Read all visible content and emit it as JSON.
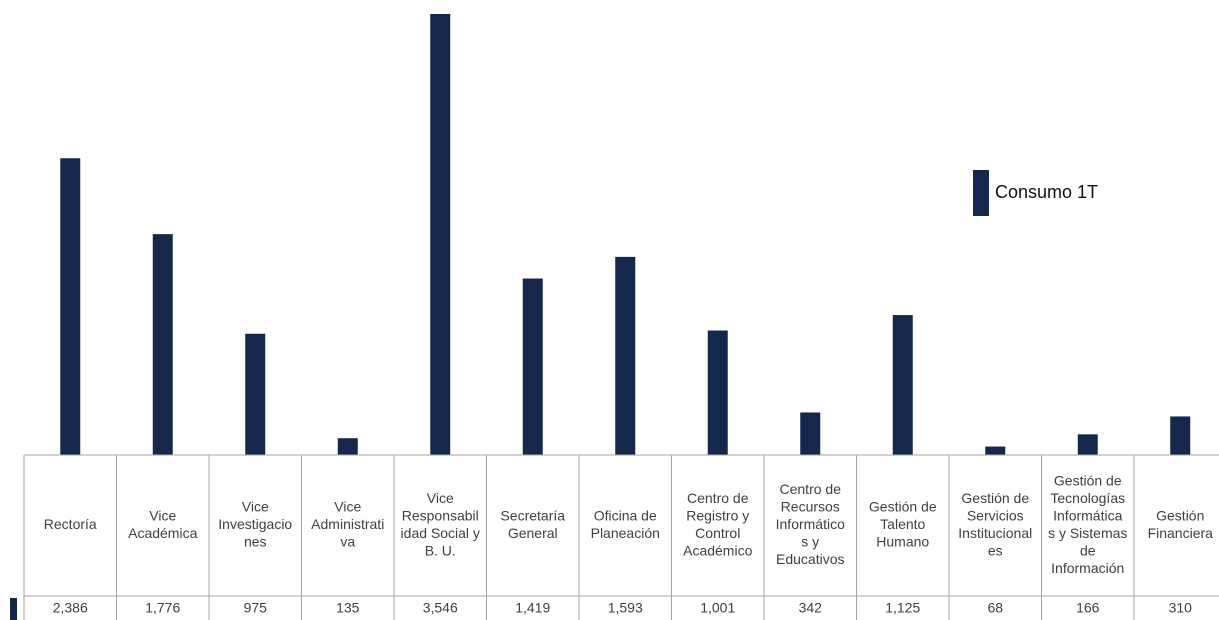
{
  "chart_data": {
    "type": "bar",
    "categories": [
      "Rectoría",
      "Vice Académica",
      "Vice Investigaciones",
      "Vice Administrativa",
      "Vice Responsabilidad Social y B. U.",
      "Secretaría General",
      "Oficina de Planeación",
      "Centro de Registro y Control Académico",
      "Centro de Recursos Informáticos y Educativos",
      "Gestión de Talento Humano",
      "Gestión de Servicios Institucionales",
      "Gestión de Tecnologías Informáticas y Sistemas de Información",
      "Gestión Financiera"
    ],
    "category_lines": [
      [
        "Rectoría"
      ],
      [
        "Vice",
        "Académica"
      ],
      [
        "Vice",
        "Investigacio",
        "nes"
      ],
      [
        "Vice",
        "Administrati",
        "va"
      ],
      [
        "Vice",
        "Responsabil",
        "idad Social y",
        "B. U."
      ],
      [
        "Secretaría",
        "General"
      ],
      [
        "Oficina de",
        "Planeación"
      ],
      [
        "Centro de",
        "Registro y",
        "Control",
        "Académico"
      ],
      [
        "Centro de",
        "Recursos",
        "Informático",
        "s y",
        "Educativos"
      ],
      [
        "Gestión de",
        "Talento",
        "Humano"
      ],
      [
        "Gestión de",
        "Servicios",
        "Institucional",
        "es"
      ],
      [
        "Gestión de",
        "Tecnologías",
        "Informática",
        "s y Sistemas",
        "de",
        "Información"
      ],
      [
        "Gestión",
        "Financiera"
      ]
    ],
    "series": [
      {
        "name": "Consumo 1T",
        "values": [
          2386,
          1776,
          975,
          135,
          3546,
          1419,
          1593,
          1001,
          342,
          1125,
          68,
          166,
          310
        ],
        "value_labels": [
          "2,386",
          "1,776",
          "975",
          "135",
          "3,546",
          "1,419",
          "1,593",
          "1,001",
          "342",
          "1,125",
          "68",
          "166",
          "310"
        ],
        "color": "#14284b"
      }
    ],
    "ylim": [
      0,
      3546
    ],
    "legend": {
      "position": "right",
      "label": "Consumo 1T"
    },
    "grid": false,
    "data_table": true
  }
}
